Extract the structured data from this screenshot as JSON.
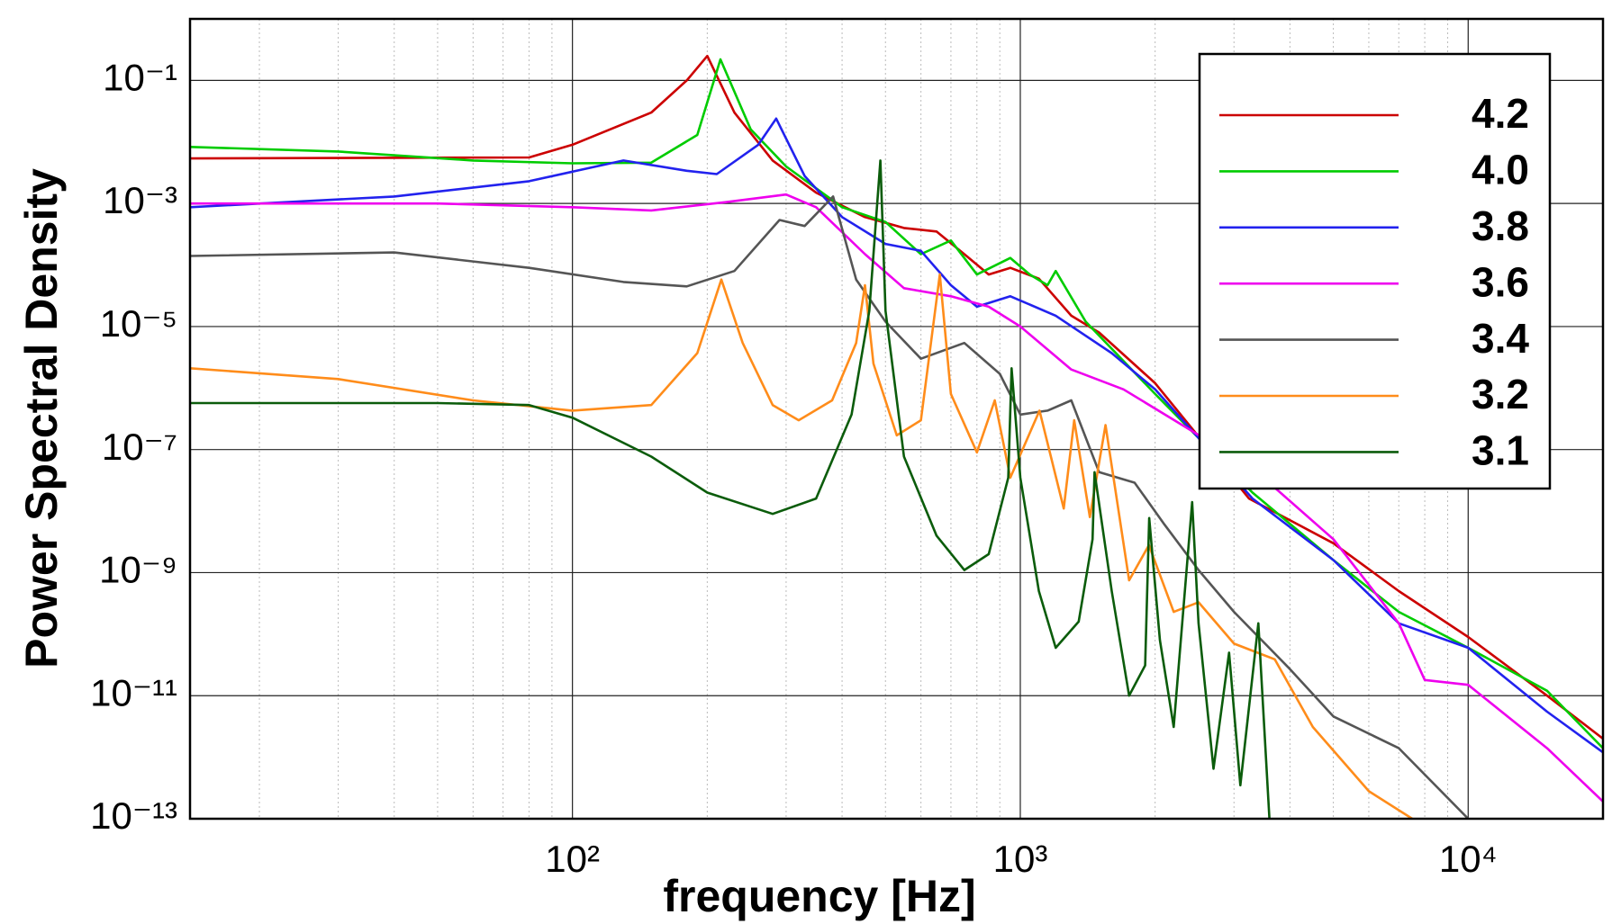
{
  "chart_data": {
    "type": "line",
    "xlabel": "frequency [Hz]",
    "ylabel": "Power Spectral Density",
    "xscale": "log",
    "yscale": "log",
    "xlim": [
      14,
      20000
    ],
    "ylim": [
      1e-13,
      1
    ],
    "xticks": [
      {
        "value": 100,
        "label": "10²"
      },
      {
        "value": 1000,
        "label": "10³"
      },
      {
        "value": 10000,
        "label": "10⁴"
      }
    ],
    "x_minor_ticks": [
      20,
      30,
      40,
      50,
      60,
      70,
      80,
      90,
      200,
      300,
      400,
      500,
      600,
      700,
      800,
      900,
      2000,
      3000,
      4000,
      5000,
      6000,
      7000,
      8000,
      9000
    ],
    "yticks": [
      {
        "value": 1e-13,
        "label": "10⁻¹³"
      },
      {
        "value": 1e-11,
        "label": "10⁻¹¹"
      },
      {
        "value": 1e-09,
        "label": "10⁻⁹"
      },
      {
        "value": 1e-07,
        "label": "10⁻⁷"
      },
      {
        "value": 1e-05,
        "label": "10⁻⁵"
      },
      {
        "value": 0.001,
        "label": "10⁻³"
      },
      {
        "value": 0.1,
        "label": "10⁻¹"
      }
    ],
    "grid": true,
    "legend": "upper right",
    "series": [
      {
        "name": "4.2",
        "color": "#cc0000",
        "x": [
          14,
          80,
          100,
          150,
          180,
          200,
          230,
          280,
          350,
          450,
          550,
          650,
          750,
          850,
          950,
          1100,
          1300,
          1500,
          2000,
          3240,
          5000,
          7000,
          10000,
          15000,
          20000
        ],
        "values": [
          0.0054,
          0.0056,
          0.009,
          0.03,
          0.1,
          0.25,
          0.03,
          0.005,
          0.0015,
          0.0006,
          0.0004,
          0.00035,
          0.00015,
          7e-05,
          9e-05,
          6e-05,
          1.5e-05,
          8e-06,
          1.2e-06,
          1.6e-08,
          3e-09,
          5e-10,
          9e-11,
          1e-11,
          2e-12
        ]
      },
      {
        "name": "4.0",
        "color": "#00cc00",
        "x": [
          14,
          30,
          60,
          100,
          150,
          190,
          214,
          250,
          300,
          400,
          500,
          600,
          700,
          800,
          950,
          1050,
          1150,
          1200,
          1400,
          2000,
          3300,
          5000,
          7000,
          10000,
          15000,
          20000
        ],
        "values": [
          0.0083,
          0.007,
          0.005,
          0.0045,
          0.0046,
          0.013,
          0.22,
          0.016,
          0.004,
          0.00087,
          0.0005,
          0.00015,
          0.00025,
          7e-05,
          0.00013,
          7e-05,
          4.7e-05,
          8e-05,
          1.2e-05,
          8e-07,
          2e-08,
          1.6e-09,
          2.3e-10,
          6e-11,
          1.2e-11,
          1.4e-12
        ]
      },
      {
        "name": "3.8",
        "color": "#2222ee",
        "x": [
          14,
          40,
          80,
          130,
          180,
          210,
          260,
          285,
          330,
          400,
          500,
          600,
          700,
          800,
          950,
          1200,
          1600,
          2000,
          3300,
          5000,
          7000,
          10000,
          15000,
          20000
        ],
        "values": [
          0.00087,
          0.0013,
          0.0023,
          0.005,
          0.0034,
          0.003,
          0.009,
          0.024,
          0.0028,
          0.0006,
          0.00022,
          0.00017,
          4.7e-05,
          2.1e-05,
          3.1e-05,
          1.5e-05,
          3.7e-06,
          9.5e-07,
          1.6e-08,
          1.6e-09,
          1.5e-10,
          6e-11,
          5.5e-12,
          1.2e-12
        ]
      },
      {
        "name": "3.6",
        "color": "#ee00ee",
        "x": [
          14,
          50,
          100,
          150,
          220,
          300,
          350,
          450,
          550,
          700,
          850,
          1000,
          1300,
          1700,
          2300,
          3300,
          5000,
          7000,
          8000,
          10000,
          15000,
          20000
        ],
        "values": [
          0.001,
          0.001,
          0.00087,
          0.00077,
          0.00105,
          0.0014,
          0.00087,
          0.00015,
          4.2e-05,
          3.1e-05,
          2.1e-05,
          1e-05,
          2e-06,
          9.5e-07,
          2.5e-07,
          5e-08,
          3.5e-09,
          1.5e-10,
          1.8e-11,
          1.5e-11,
          1.4e-12,
          1.9e-13
        ]
      },
      {
        "name": "3.4",
        "color": "#555555",
        "x": [
          14,
          40,
          80,
          130,
          180,
          230,
          290,
          330,
          382,
          430,
          500,
          600,
          750,
          900,
          1000,
          1150,
          1300,
          1500,
          1800,
          2100,
          2500,
          3000,
          4000,
          5000,
          7000,
          10000
        ],
        "values": [
          0.00014,
          0.00016,
          9e-05,
          5.3e-05,
          4.5e-05,
          8e-05,
          0.00054,
          0.00043,
          0.0013,
          5.8e-05,
          1.2e-05,
          3e-06,
          5.4e-06,
          1.7e-06,
          3.7e-07,
          4.3e-07,
          6.3e-07,
          4.3e-08,
          2.9e-08,
          6e-09,
          1.1e-09,
          2.3e-10,
          2.7e-11,
          4.6e-12,
          1.4e-12,
          1e-13
        ]
      },
      {
        "name": "3.2",
        "color": "#ff8c1a",
        "x": [
          14,
          30,
          60,
          100,
          150,
          190,
          215,
          240,
          280,
          320,
          380,
          430,
          450,
          470,
          530,
          600,
          661,
          700,
          800,
          877,
          950,
          1104,
          1250,
          1319,
          1430,
          1550,
          1750,
          1937,
          2200,
          2500,
          3000,
          3700,
          4500,
          6000,
          7500
        ],
        "values": [
          2.1e-06,
          1.4e-06,
          6.3e-07,
          4.3e-07,
          5.3e-07,
          3.7e-06,
          5.8e-05,
          5.4e-06,
          5.3e-07,
          3e-07,
          6.3e-07,
          5.4e-06,
          4.7e-05,
          2.5e-06,
          1.7e-07,
          3e-07,
          7e-05,
          8e-07,
          9e-08,
          6.3e-07,
          3.5e-08,
          4.3e-07,
          1.1e-08,
          3e-07,
          8e-09,
          2.5e-07,
          7.5e-10,
          2.8e-09,
          2.3e-10,
          3.3e-10,
          7e-11,
          3.9e-11,
          3.1e-12,
          2.8e-13,
          1e-13
        ]
      },
      {
        "name": "3.1",
        "color": "#0b5c0b",
        "x": [
          14,
          50,
          80,
          100,
          150,
          200,
          280,
          350,
          420,
          460,
          487,
          500,
          550,
          650,
          750,
          850,
          940,
          956,
          1000,
          1100,
          1200,
          1350,
          1450,
          1465,
          1600,
          1750,
          1900,
          1940,
          2050,
          2200,
          2420,
          2500,
          2700,
          2925,
          3100,
          3400,
          3600,
          3700
        ],
        "values": [
          5.7e-07,
          5.7e-07,
          5.3e-07,
          3.3e-07,
          7.7e-08,
          2e-08,
          9e-09,
          1.6e-08,
          3.7e-07,
          1.8e-05,
          0.005,
          1.8e-05,
          7.7e-08,
          4e-09,
          1.1e-09,
          2e-09,
          3.5e-08,
          2.1e-06,
          3.5e-08,
          5e-10,
          6e-11,
          1.6e-10,
          3.5e-09,
          4.3e-08,
          5e-10,
          1e-11,
          3.1e-11,
          7.7e-09,
          8e-11,
          3.1e-12,
          1.4e-08,
          1.5e-10,
          6.5e-13,
          5e-11,
          3.5e-13,
          1.5e-10,
          1e-13,
          6e-14
        ]
      }
    ]
  }
}
